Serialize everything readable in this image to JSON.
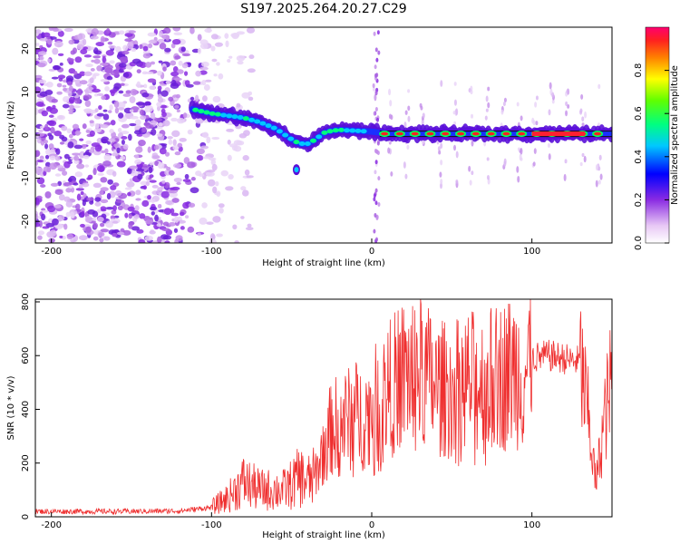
{
  "chart_data": [
    {
      "type": "heatmap",
      "title": "S197.2025.264.20.27.C29",
      "xlabel": "Height of straight line (km)",
      "ylabel": "Frequency (Hz)",
      "xlim": [
        -210,
        150
      ],
      "ylim": [
        -25,
        25
      ],
      "xticks": [
        -200,
        -100,
        0,
        100
      ],
      "yticks": [
        -20,
        -10,
        0,
        10,
        20
      ],
      "colorbar": {
        "label": "Normalized spectral amplitude",
        "range": [
          0,
          1
        ],
        "ticks": [
          "0.0",
          "0.2",
          "0.4",
          "0.6",
          "0.8"
        ]
      },
      "description_noise_region_km": [
        -210,
        -95
      ],
      "ridge": {
        "x": [
          -112,
          -100,
          -90,
          -80,
          -70,
          -60,
          -50,
          -45,
          -40,
          -35,
          -30,
          -25,
          -20,
          -10,
          0,
          10,
          20,
          40,
          60,
          80,
          100,
          120,
          140,
          150
        ],
        "y": [
          6,
          5,
          4.5,
          4,
          3,
          1.5,
          -1,
          -2,
          -2,
          -1,
          0.5,
          1,
          1.2,
          1,
          0.8,
          0.3,
          0.3,
          0.3,
          0.3,
          0.3,
          0.3,
          0.3,
          0.3,
          0.3
        ]
      },
      "satellite_blob": {
        "x": -47,
        "y": -8
      }
    },
    {
      "type": "line",
      "xlabel": "Height of straight line (km)",
      "ylabel": "SNR (10 * v/v)",
      "xlim": [
        -210,
        150
      ],
      "ylim": [
        0,
        810
      ],
      "xticks": [
        -200,
        -100,
        0,
        100
      ],
      "yticks": [
        0,
        200,
        400,
        600,
        800
      ],
      "series": [
        {
          "name": "SNR",
          "color": "#ef2f2f",
          "x": [
            -210,
            -180,
            -150,
            -120,
            -100,
            -90,
            -80,
            -70,
            -60,
            -55,
            -50,
            -45,
            -40,
            -35,
            -30,
            -25,
            -20,
            -15,
            -10,
            -5,
            0,
            10,
            20,
            30,
            40,
            50,
            60,
            70,
            80,
            90,
            95,
            100,
            110,
            120,
            125,
            130,
            135,
            140,
            145,
            150
          ],
          "values": [
            20,
            20,
            20,
            22,
            35,
            70,
            130,
            100,
            100,
            100,
            120,
            150,
            130,
            150,
            260,
            330,
            350,
            360,
            380,
            370,
            400,
            470,
            530,
            550,
            480,
            470,
            500,
            500,
            520,
            550,
            530,
            590,
            600,
            590,
            580,
            580,
            380,
            120,
            350,
            520
          ]
        }
      ]
    }
  ]
}
